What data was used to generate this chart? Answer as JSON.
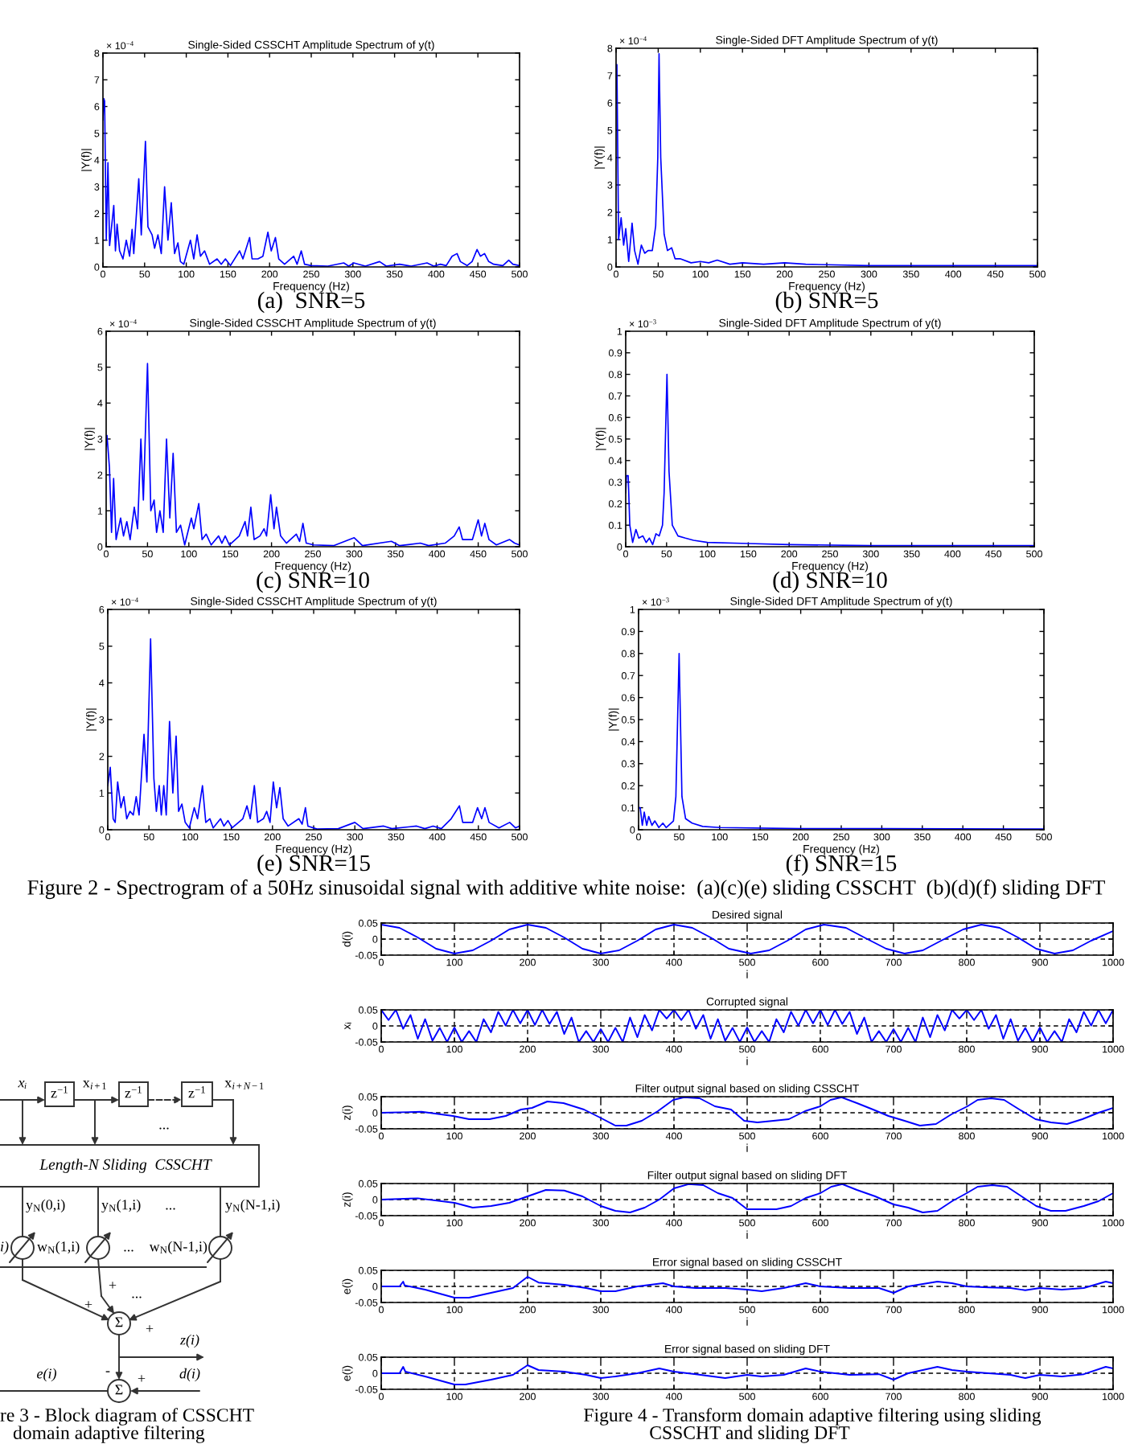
{
  "chart_data": [
    {
      "type": "line",
      "title": "Single-Sided CSSCHT Amplitude Spectrum of y(t)",
      "xlabel": "Frequency (Hz)",
      "ylabel": "|Y(f)|",
      "color": "#0000ff",
      "xlim": [
        0,
        500
      ],
      "ylim": [
        0,
        8
      ],
      "xticks": [
        0,
        50,
        100,
        150,
        200,
        250,
        300,
        350,
        400,
        450,
        500
      ],
      "yticks": [
        0,
        1,
        2,
        3,
        4,
        5,
        6,
        7,
        8
      ],
      "annotations": [
        "× 10$^{−4}$",
        "(a)  SNR=5"
      ],
      "x": [
        0,
        1,
        2,
        4,
        6,
        8,
        13,
        15,
        17,
        20,
        24,
        28,
        32,
        35,
        37,
        43,
        46,
        51,
        54,
        59,
        62,
        66,
        70,
        74,
        78,
        82,
        86,
        90,
        93,
        97,
        105,
        109,
        113,
        117,
        122,
        128,
        137,
        142,
        147,
        153,
        164,
        168,
        176,
        179,
        186,
        192,
        198,
        202,
        207,
        211,
        218,
        229,
        233,
        238,
        242,
        250,
        270,
        289,
        295,
        301,
        315,
        332,
        340,
        356,
        370,
        389,
        397,
        405,
        412,
        419,
        425,
        429,
        437,
        443,
        449,
        453,
        458,
        463,
        469,
        480,
        487,
        492,
        500
      ],
      "values": [
        5.5,
        6.3,
        6.2,
        1.0,
        3.9,
        0.8,
        2.3,
        0.6,
        1.6,
        0.6,
        0.3,
        1.0,
        0.4,
        1.4,
        0.5,
        3.3,
        1.2,
        4.7,
        1.5,
        1.2,
        0.7,
        1.2,
        0.5,
        3.0,
        1.0,
        2.4,
        0.5,
        0.9,
        0.2,
        0.1,
        1.0,
        0.3,
        1.2,
        0.4,
        0.6,
        0.1,
        0.3,
        0.1,
        0.3,
        0.05,
        0.6,
        0.3,
        1.1,
        0.3,
        0.3,
        0.4,
        1.3,
        0.6,
        1.1,
        0.3,
        0.1,
        0.4,
        0.1,
        0.6,
        0.1,
        0.05,
        0.03,
        0.15,
        0.03,
        0.15,
        0.03,
        0.2,
        0.03,
        0.1,
        0.03,
        0.15,
        0.03,
        0.1,
        0.05,
        0.4,
        0.5,
        0.2,
        0.05,
        0.2,
        0.65,
        0.4,
        0.5,
        0.2,
        0.1,
        0.05,
        0.25,
        0.1,
        0.05
      ]
    },
    {
      "type": "line",
      "title": "Single-Sided DFT Amplitude Spectrum of y(t)",
      "xlabel": "Frequency (Hz)",
      "ylabel": "|Y(f)|",
      "color": "#0000ff",
      "xlim": [
        0,
        500
      ],
      "ylim": [
        0,
        8
      ],
      "xticks": [
        0,
        50,
        100,
        150,
        200,
        250,
        300,
        350,
        400,
        450,
        500
      ],
      "yticks": [
        0,
        1,
        2,
        3,
        4,
        5,
        6,
        7,
        8
      ],
      "annotations": [
        "× 10$^{−4}$",
        "(b) SNR=5"
      ],
      "x": [
        0,
        1,
        3,
        6,
        9,
        11.5,
        15,
        19,
        22,
        26,
        30,
        34,
        38,
        43,
        47,
        49.5,
        51,
        53,
        57,
        61,
        66,
        70,
        76,
        89,
        100,
        110,
        120,
        135,
        150,
        175,
        200,
        225,
        250,
        300,
        350,
        400,
        450,
        500
      ],
      "values": [
        6.5,
        7.4,
        1.0,
        1.8,
        0.8,
        1.4,
        0.2,
        1.6,
        0.6,
        0.1,
        0.8,
        0.5,
        0.6,
        0.6,
        1.5,
        4.0,
        7.8,
        4.0,
        1.2,
        0.6,
        0.7,
        0.3,
        0.3,
        0.15,
        0.2,
        0.15,
        0.25,
        0.1,
        0.15,
        0.1,
        0.15,
        0.1,
        0.08,
        0.05,
        0.05,
        0.05,
        0.05,
        0.05
      ]
    },
    {
      "type": "line",
      "title": "Single-Sided CSSCHT Amplitude Spectrum of y(t)",
      "xlabel": "Frequency (Hz)",
      "ylabel": "|Y(f)|",
      "color": "#0000ff",
      "xlim": [
        0,
        500
      ],
      "ylim": [
        0,
        6
      ],
      "xticks": [
        0,
        50,
        100,
        150,
        200,
        250,
        300,
        350,
        400,
        450,
        500
      ],
      "yticks": [
        0,
        1,
        2,
        3,
        4,
        5,
        6
      ],
      "annotations": [
        "× 10$^{−4}$",
        "(c) SNR=10"
      ],
      "x": [
        0,
        1,
        4,
        6.5,
        9,
        12,
        17.5,
        21,
        25,
        29,
        34,
        38,
        42,
        45,
        50,
        54,
        58,
        61,
        65,
        69,
        73,
        77,
        81,
        85,
        90,
        95,
        103,
        106,
        112,
        116,
        121,
        127,
        136,
        140,
        144,
        149,
        161,
        168,
        171,
        175,
        179,
        186,
        191,
        194,
        199,
        203,
        206,
        211,
        218,
        230,
        234,
        238,
        242,
        251,
        275,
        300,
        310,
        345,
        355,
        380,
        390,
        410,
        421,
        427,
        431,
        443,
        450,
        454,
        458,
        463,
        472,
        488,
        494,
        500
      ],
      "values": [
        2.8,
        3.1,
        2.2,
        0.4,
        1.9,
        0.2,
        0.8,
        0.3,
        0.7,
        0.2,
        1.1,
        0.5,
        3.0,
        1.3,
        5.1,
        1.0,
        1.3,
        0.4,
        1.0,
        0.4,
        3.0,
        0.8,
        2.6,
        0.4,
        0.6,
        0.05,
        0.8,
        0.5,
        1.2,
        0.2,
        0.35,
        0.05,
        0.3,
        0.1,
        0.3,
        0.05,
        0.3,
        0.7,
        0.3,
        1.1,
        0.2,
        0.3,
        0.5,
        0.3,
        1.45,
        0.5,
        1.1,
        0.3,
        0.1,
        0.35,
        0.15,
        0.65,
        0.1,
        0.05,
        0.03,
        0.25,
        0.03,
        0.15,
        0.03,
        0.1,
        0.03,
        0.1,
        0.3,
        0.55,
        0.2,
        0.2,
        0.75,
        0.3,
        0.65,
        0.2,
        0.05,
        0.2,
        0.1,
        0.05
      ]
    },
    {
      "type": "line",
      "title": "Single-Sided DFT Amplitude Spectrum of y(t)",
      "xlabel": "Frequency (Hz)",
      "ylabel": "|Y(f)|",
      "color": "#0000ff",
      "xlim": [
        0,
        500
      ],
      "ylim": [
        0,
        1
      ],
      "xticks": [
        0,
        50,
        100,
        150,
        200,
        250,
        300,
        350,
        400,
        450,
        500
      ],
      "yticks": [
        0,
        0.1,
        0.2,
        0.3,
        0.4,
        0.5,
        0.6,
        0.7,
        0.8,
        0.9,
        1
      ],
      "annotations": [
        "× 10$^{−3}$",
        "(d) SNR=10"
      ],
      "x": [
        0,
        1,
        3,
        5,
        8.5,
        12.5,
        16,
        21,
        25,
        29,
        33,
        37,
        41,
        45,
        47,
        50.5,
        53,
        57,
        64,
        73,
        83,
        100,
        150,
        200,
        300,
        400,
        500
      ],
      "values": [
        0.25,
        0.33,
        0.33,
        0.1,
        0.02,
        0.08,
        0.04,
        0.05,
        0.02,
        0.04,
        0.01,
        0.06,
        0.05,
        0.1,
        0.25,
        0.8,
        0.35,
        0.1,
        0.05,
        0.04,
        0.03,
        0.02,
        0.015,
        0.01,
        0.005,
        0.005,
        0.005
      ]
    },
    {
      "type": "line",
      "title": "Single-Sided CSSCHT Amplitude Spectrum of y(t)",
      "xlabel": "Frequency (Hz)",
      "ylabel": "|Y(f)|",
      "color": "#0000ff",
      "xlim": [
        0,
        500
      ],
      "ylim": [
        0,
        6
      ],
      "xticks": [
        0,
        50,
        100,
        150,
        200,
        250,
        300,
        350,
        400,
        450,
        500
      ],
      "yticks": [
        0,
        1,
        2,
        3,
        4,
        5,
        6
      ],
      "annotations": [
        "× 10$^{−4}$",
        "(e) SNR=15",
        "Figure 2 - Spectrogram of a 50Hz sinusoidal signal with additive white noise:  (a)(c)(e) sliding CSSCHT  (b)(d)(f) sliding DFT"
      ],
      "x": [
        0,
        3,
        6.5,
        9,
        12,
        16,
        19.5,
        23,
        27,
        31,
        34.5,
        38,
        44,
        47.5,
        52,
        56,
        59,
        62.5,
        65,
        68,
        71,
        75,
        79,
        83,
        86,
        90,
        94,
        99,
        105,
        109,
        115,
        119,
        124,
        128,
        137,
        141,
        146,
        151,
        164,
        169,
        173,
        178,
        182,
        189,
        193,
        197,
        201,
        205,
        209,
        213,
        219,
        232,
        236,
        240,
        243,
        254,
        280,
        300,
        310,
        335,
        345,
        375,
        385,
        395,
        405,
        417,
        427,
        431,
        443,
        449,
        454,
        458,
        463,
        475,
        488,
        495,
        500
      ],
      "values": [
        1.2,
        1.7,
        0.3,
        0.2,
        1.3,
        0.6,
        0.9,
        0.3,
        0.5,
        0.4,
        0.9,
        0.4,
        2.6,
        1.3,
        5.2,
        1.4,
        0.5,
        1.2,
        0.4,
        1.2,
        0.4,
        2.95,
        1.0,
        2.55,
        0.5,
        0.7,
        0.2,
        0.05,
        0.6,
        0.3,
        1.2,
        0.2,
        0.3,
        0.05,
        0.3,
        0.1,
        0.25,
        0.05,
        0.3,
        0.65,
        0.3,
        1.2,
        0.2,
        0.3,
        0.5,
        0.2,
        1.3,
        0.6,
        1.15,
        0.3,
        0.1,
        0.3,
        0.15,
        0.6,
        0.1,
        0.02,
        0.03,
        0.2,
        0.03,
        0.1,
        0.03,
        0.1,
        0.03,
        0.1,
        0.03,
        0.3,
        0.65,
        0.2,
        0.2,
        0.6,
        0.3,
        0.6,
        0.2,
        0.05,
        0.2,
        0.05,
        0.1
      ]
    },
    {
      "type": "line",
      "title": "Single-Sided DFT Amplitude Spectrum of y(t)",
      "xlabel": "Frequency (Hz)",
      "ylabel": "|Y(f)|",
      "color": "#0000ff",
      "xlim": [
        0,
        500
      ],
      "ylim": [
        0,
        1
      ],
      "xticks": [
        0,
        50,
        100,
        150,
        200,
        250,
        300,
        350,
        400,
        450,
        500
      ],
      "yticks": [
        0,
        0.1,
        0.2,
        0.3,
        0.4,
        0.5,
        0.6,
        0.7,
        0.8,
        0.9,
        1
      ],
      "annotations": [
        "× 10$^{−3}$",
        "(f) SNR=15"
      ],
      "x": [
        0,
        2,
        4.6,
        7,
        10,
        12.5,
        16.5,
        20,
        25,
        30,
        34,
        40,
        43,
        46,
        50,
        53.5,
        58,
        66,
        79,
        100,
        200,
        300,
        500
      ],
      "values": [
        0.1,
        0.1,
        0.02,
        0.08,
        0.02,
        0.06,
        0.02,
        0.04,
        0.01,
        0.03,
        0.01,
        0.03,
        0.04,
        0.15,
        0.8,
        0.15,
        0.05,
        0.03,
        0.015,
        0.01,
        0.005,
        0.005,
        0.003
      ]
    },
    {
      "type": "line",
      "title": "Desired signal",
      "xlabel": "i",
      "ylabel": "d(i)",
      "color": "#0000ff",
      "grid": true,
      "xlim": [
        0,
        1000
      ],
      "ylim": [
        -0.05,
        0.05
      ],
      "xticks": [
        0,
        100,
        200,
        300,
        400,
        500,
        600,
        700,
        800,
        900,
        1000
      ],
      "yticks": [
        -0.05,
        0,
        0.05
      ],
      "x": [
        0,
        25,
        50,
        75,
        100,
        125,
        150,
        175,
        200,
        225,
        250,
        275,
        300,
        325,
        350,
        375,
        400,
        425,
        450,
        475,
        505,
        530,
        555,
        580,
        605,
        635,
        660,
        690,
        715,
        740,
        765,
        795,
        820,
        845,
        870,
        895,
        920,
        945,
        970,
        1000
      ],
      "values": [
        0.045,
        0.035,
        0.005,
        -0.03,
        -0.045,
        -0.035,
        -0.005,
        0.03,
        0.045,
        0.035,
        0.005,
        -0.03,
        -0.045,
        -0.035,
        -0.005,
        0.03,
        0.045,
        0.035,
        0.005,
        -0.03,
        -0.045,
        -0.035,
        -0.005,
        0.03,
        0.045,
        0.035,
        0.005,
        -0.03,
        -0.045,
        -0.035,
        -0.005,
        0.03,
        0.045,
        0.035,
        0.005,
        -0.03,
        -0.045,
        -0.035,
        -0.005,
        0.025
      ]
    },
    {
      "type": "line",
      "title": "Corrupted signal",
      "xlabel": "i",
      "ylabel": "xᵢ",
      "color": "#0000ff",
      "grid": true,
      "xlim": [
        0,
        1000
      ],
      "ylim": [
        -0.05,
        0.05
      ],
      "xticks": [
        0,
        100,
        200,
        300,
        400,
        500,
        600,
        700,
        800,
        900,
        1000
      ],
      "yticks": [
        -0.05,
        0,
        0.05
      ],
      "x": [
        0,
        10,
        20,
        30,
        40,
        50,
        60,
        70,
        80,
        90,
        100,
        110,
        120,
        130,
        140,
        150,
        160,
        170,
        180,
        190,
        200,
        210,
        220,
        230,
        240,
        250,
        260,
        270,
        280,
        290,
        300,
        310,
        320,
        330,
        340,
        350,
        360,
        370,
        380,
        390,
        400,
        410,
        420,
        430,
        440,
        450,
        460,
        470,
        480,
        490,
        500,
        510,
        520,
        530,
        540,
        550,
        560,
        570,
        580,
        590,
        600,
        610,
        620,
        630,
        640,
        650,
        660,
        670,
        680,
        690,
        700,
        710,
        720,
        730,
        740,
        750,
        760,
        770,
        780,
        790,
        800,
        810,
        820,
        830,
        840,
        850,
        860,
        870,
        880,
        890,
        900,
        910,
        920,
        930,
        940,
        950,
        960,
        970,
        980,
        990,
        1000
      ],
      "values": [
        0.05,
        0.018,
        0.05,
        -0.009,
        0.034,
        -0.04,
        0.021,
        -0.046,
        -0.006,
        -0.05,
        -0.005,
        -0.05,
        -0.016,
        -0.05,
        0.021,
        -0.02,
        0.044,
        0.001,
        0.05,
        0.008,
        0.05,
        0.003,
        0.05,
        0.006,
        0.044,
        -0.025,
        0.026,
        -0.05,
        -0.016,
        -0.05,
        -0.01,
        -0.05,
        -0.006,
        -0.05,
        0.026,
        -0.035,
        0.034,
        -0.014,
        0.05,
        0.023,
        0.05,
        0.018,
        0.05,
        -0.009,
        0.034,
        -0.04,
        0.021,
        -0.046,
        -0.006,
        -0.05,
        -0.005,
        -0.05,
        -0.016,
        -0.05,
        0.021,
        -0.02,
        0.044,
        0.001,
        0.05,
        0.008,
        0.05,
        0.003,
        0.05,
        0.006,
        0.044,
        -0.025,
        0.026,
        -0.05,
        -0.016,
        -0.05,
        -0.01,
        -0.05,
        -0.006,
        -0.05,
        0.026,
        -0.035,
        0.034,
        -0.014,
        0.05,
        0.023,
        0.05,
        0.018,
        0.05,
        -0.009,
        0.034,
        -0.04,
        0.021,
        -0.046,
        -0.006,
        -0.05,
        -0.005,
        -0.05,
        -0.016,
        -0.05,
        0.021,
        -0.02,
        0.044,
        0.001,
        0.05,
        0.008,
        0.05
      ]
    },
    {
      "type": "line",
      "title": "Filter output signal based on sliding CSSCHT",
      "xlabel": "i",
      "ylabel": "z(i)",
      "color": "#0000ff",
      "grid": true,
      "xlim": [
        0,
        1000
      ],
      "ylim": [
        -0.05,
        0.05
      ],
      "xticks": [
        0,
        100,
        200,
        300,
        400,
        500,
        600,
        700,
        800,
        900,
        1000
      ],
      "yticks": [
        -0.05,
        0,
        0.05
      ],
      "x": [
        0,
        55,
        98,
        120,
        148,
        170,
        191,
        206,
        227,
        249,
        277,
        299,
        320,
        335,
        356,
        378,
        399,
        414,
        435,
        456,
        478,
        496,
        514,
        536,
        557,
        579,
        600,
        614,
        629,
        650,
        672,
        693,
        715,
        736,
        758,
        779,
        801,
        815,
        833,
        851,
        872,
        894,
        915,
        937,
        958,
        980,
        1000
      ],
      "values": [
        0,
        0.003,
        -0.01,
        -0.02,
        -0.02,
        -0.01,
        0.01,
        0.015,
        0.035,
        0.03,
        0.01,
        -0.015,
        -0.04,
        -0.04,
        -0.025,
        0.005,
        0.04,
        0.048,
        0.045,
        0.02,
        0.01,
        -0.025,
        -0.03,
        -0.025,
        -0.02,
        0.005,
        0.02,
        0.04,
        0.048,
        0.03,
        0.01,
        -0.01,
        -0.025,
        -0.04,
        -0.035,
        -0.005,
        0.02,
        0.04,
        0.045,
        0.04,
        0.01,
        -0.02,
        -0.03,
        -0.035,
        -0.02,
        0.0,
        0.015
      ]
    },
    {
      "type": "line",
      "title": "Filter output signal based on sliding DFT",
      "xlabel": "i",
      "ylabel": "z(i)",
      "color": "#0000ff",
      "grid": true,
      "xlim": [
        0,
        1000
      ],
      "ylim": [
        -0.05,
        0.05
      ],
      "xticks": [
        0,
        100,
        200,
        300,
        400,
        500,
        600,
        700,
        800,
        900,
        1000
      ],
      "yticks": [
        -0.05,
        0,
        0.05
      ],
      "x": [
        0,
        50,
        100,
        125,
        150,
        175,
        200,
        225,
        250,
        275,
        300,
        320,
        340,
        360,
        380,
        400,
        420,
        440,
        460,
        480,
        500,
        520,
        540,
        560,
        580,
        600,
        615,
        630,
        650,
        675,
        700,
        720,
        740,
        760,
        780,
        800,
        815,
        835,
        855,
        875,
        895,
        915,
        935,
        960,
        980,
        1000
      ],
      "values": [
        0,
        0.004,
        -0.01,
        -0.025,
        -0.02,
        -0.01,
        0.01,
        0.03,
        0.028,
        0.01,
        -0.02,
        -0.035,
        -0.04,
        -0.025,
        0.0,
        0.035,
        0.048,
        0.045,
        0.02,
        0.005,
        -0.03,
        -0.03,
        -0.03,
        -0.02,
        0.005,
        0.02,
        0.04,
        0.048,
        0.03,
        0.01,
        -0.015,
        -0.025,
        -0.04,
        -0.035,
        -0.005,
        0.02,
        0.04,
        0.045,
        0.04,
        0.01,
        -0.02,
        -0.035,
        -0.035,
        -0.02,
        -0.005,
        0.02
      ]
    },
    {
      "type": "line",
      "title": "Error signal based on sliding CSSCHT",
      "xlabel": "i",
      "ylabel": "e(i)",
      "color": "#0000ff",
      "grid": true,
      "xlim": [
        0,
        1000
      ],
      "ylim": [
        -0.05,
        0.05
      ],
      "xticks": [
        0,
        100,
        200,
        300,
        400,
        500,
        600,
        700,
        800,
        900,
        1000
      ],
      "yticks": [
        -0.05,
        0,
        0.05
      ],
      "x": [
        0,
        25,
        30,
        32,
        60,
        100,
        120,
        150,
        180,
        200,
        215,
        250,
        280,
        300,
        320,
        350,
        385,
        400,
        430,
        470,
        500,
        520,
        550,
        580,
        600,
        640,
        680,
        700,
        720,
        760,
        780,
        800,
        830,
        860,
        880,
        900,
        930,
        960,
        990,
        1000
      ],
      "values": [
        0,
        0,
        0.015,
        0.003,
        -0.01,
        -0.035,
        -0.035,
        -0.02,
        -0.005,
        0.03,
        0.012,
        0.005,
        -0.005,
        -0.015,
        -0.015,
        0.0,
        0.01,
        0.0,
        -0.005,
        -0.005,
        -0.01,
        -0.015,
        -0.005,
        0.01,
        0.0,
        -0.005,
        -0.005,
        -0.02,
        0.0,
        0.015,
        0.01,
        0.0,
        -0.003,
        -0.005,
        -0.012,
        -0.005,
        -0.01,
        -0.005,
        0.015,
        0.01
      ]
    },
    {
      "type": "line",
      "title": "Error signal based on sliding DFT",
      "ylabel": "e(i)",
      "color": "#0000ff",
      "grid": true,
      "xlim": [
        0,
        1000
      ],
      "ylim": [
        -0.05,
        0.05
      ],
      "xticks": [
        0,
        100,
        200,
        300,
        400,
        500,
        600,
        700,
        800,
        900,
        1000
      ],
      "yticks": [
        -0.05,
        0,
        0.05
      ],
      "annotations": [
        "Figure 4 - Transform domain adaptive filtering using sliding",
        "CSSCHT and sliding DFT"
      ],
      "x": [
        0,
        25,
        30,
        33,
        60,
        100,
        115,
        150,
        180,
        200,
        215,
        250,
        280,
        300,
        320,
        350,
        380,
        400,
        430,
        470,
        500,
        520,
        550,
        580,
        600,
        640,
        680,
        700,
        720,
        760,
        780,
        800,
        830,
        860,
        880,
        900,
        930,
        960,
        990,
        1000
      ],
      "values": [
        0,
        0,
        0.02,
        0.005,
        -0.01,
        -0.035,
        -0.035,
        -0.02,
        -0.005,
        0.025,
        0.01,
        0.005,
        -0.005,
        -0.015,
        -0.01,
        0.0,
        0.015,
        0.005,
        -0.003,
        -0.015,
        -0.005,
        -0.01,
        -0.005,
        0.015,
        0.005,
        -0.005,
        -0.003,
        -0.02,
        0.0,
        0.02,
        0.01,
        0.005,
        0.0,
        -0.005,
        -0.015,
        -0.005,
        -0.01,
        -0.003,
        0.02,
        0.015
      ]
    },
    {
      "type": "other",
      "annotations": [
        "xᵢ",
        "x$_{i+1}$",
        "x$_{i+N−1}$",
        "z$^{−1}$",
        "z$^{−1}$",
        "z$^{−1}$",
        "...",
        "Length-N Sliding  CSSCHT",
        "y$_{N}$(0,i)",
        "y$_{N}$(1,i)",
        "...",
        "y$_{N}$(N-1,i)",
        "i)",
        "w$_{N}$(1,i)",
        "...",
        "w$_{N}$(N-1,i)",
        "+",
        "+",
        "...",
        "+",
        "Σ",
        "z(i)",
        "e(i)",
        "d(i)",
        "-",
        "+",
        "Σ",
        "re 3 - Block diagram of CSSCHT",
        "domain adaptive filtering"
      ]
    }
  ]
}
